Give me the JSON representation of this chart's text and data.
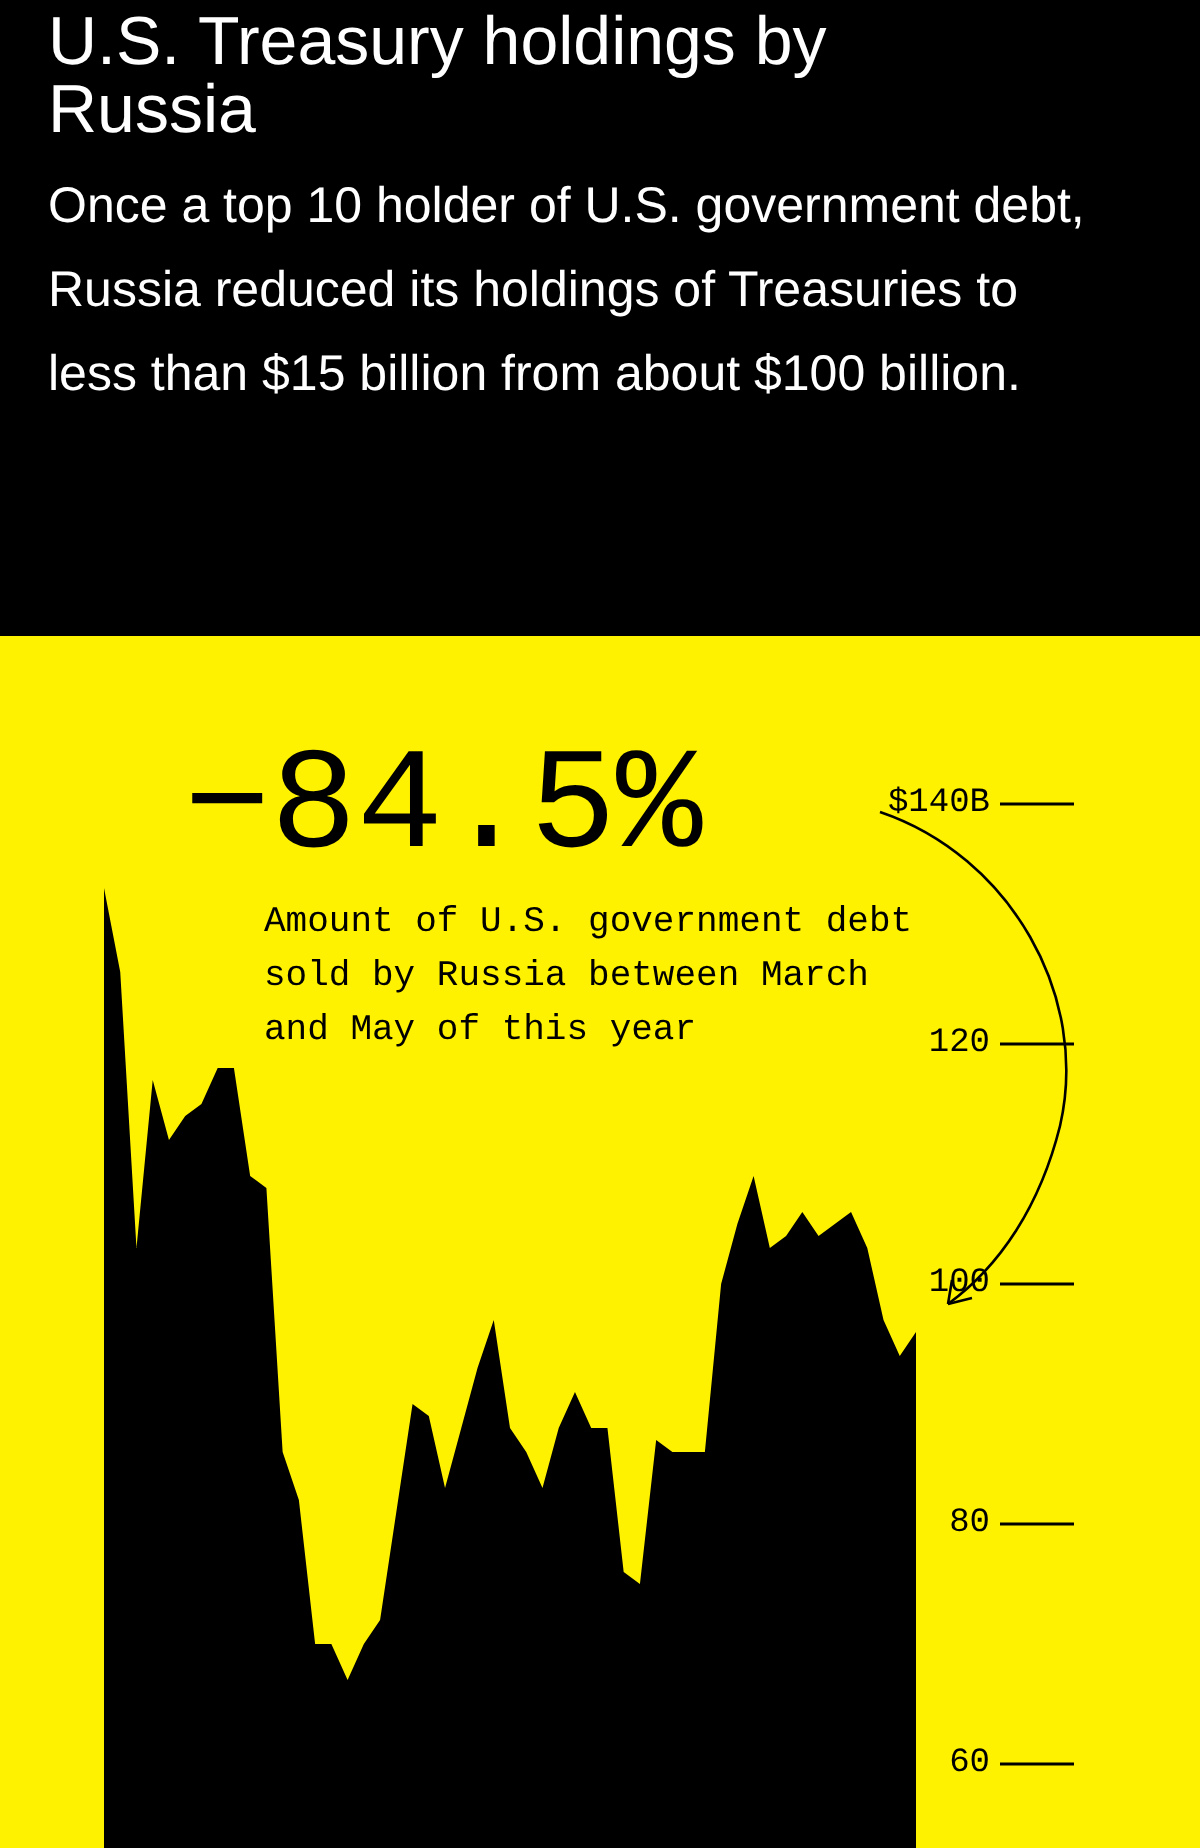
{
  "chart_data": {
    "type": "area",
    "title": "U.S. Treasury holdings by Russia",
    "subtitle": "Once a top 10 holder of U.S. government debt, Russia reduced its holdings of Treasuries to less than $15 billion from about $100 billion.",
    "annotations": [
      "−84.5%",
      "Amount of U.S. government debt sold by Russia between March and May of this year"
    ],
    "categories": [
      null,
      null,
      null,
      null,
      null,
      null,
      null,
      null,
      null,
      null,
      null,
      null,
      null,
      null,
      null,
      null,
      null,
      null,
      null,
      null,
      null,
      null,
      null,
      null,
      null,
      null,
      null,
      null,
      null,
      null,
      null,
      null,
      null,
      null,
      null,
      null,
      null,
      null,
      null,
      null,
      null,
      null,
      null,
      null,
      null,
      null,
      null,
      null,
      null,
      null,
      null
    ],
    "values": [
      133,
      126,
      103,
      117,
      112,
      114,
      115,
      118,
      118,
      109,
      108,
      86,
      82,
      70,
      70,
      67,
      70,
      72,
      81,
      90,
      89,
      83,
      88,
      93,
      97,
      88,
      86,
      83,
      88,
      91,
      88,
      88,
      76,
      75,
      87,
      86,
      86,
      86,
      100,
      105,
      109,
      103,
      104,
      106,
      104,
      105,
      106,
      103,
      97,
      94,
      96
    ],
    "color": "#000000",
    "ylim": [
      53,
      154
    ],
    "yticks": [
      {
        "value": 140,
        "label": "$140B"
      },
      120,
      100,
      80,
      60
    ],
    "tick_labels": "y"
  }
}
